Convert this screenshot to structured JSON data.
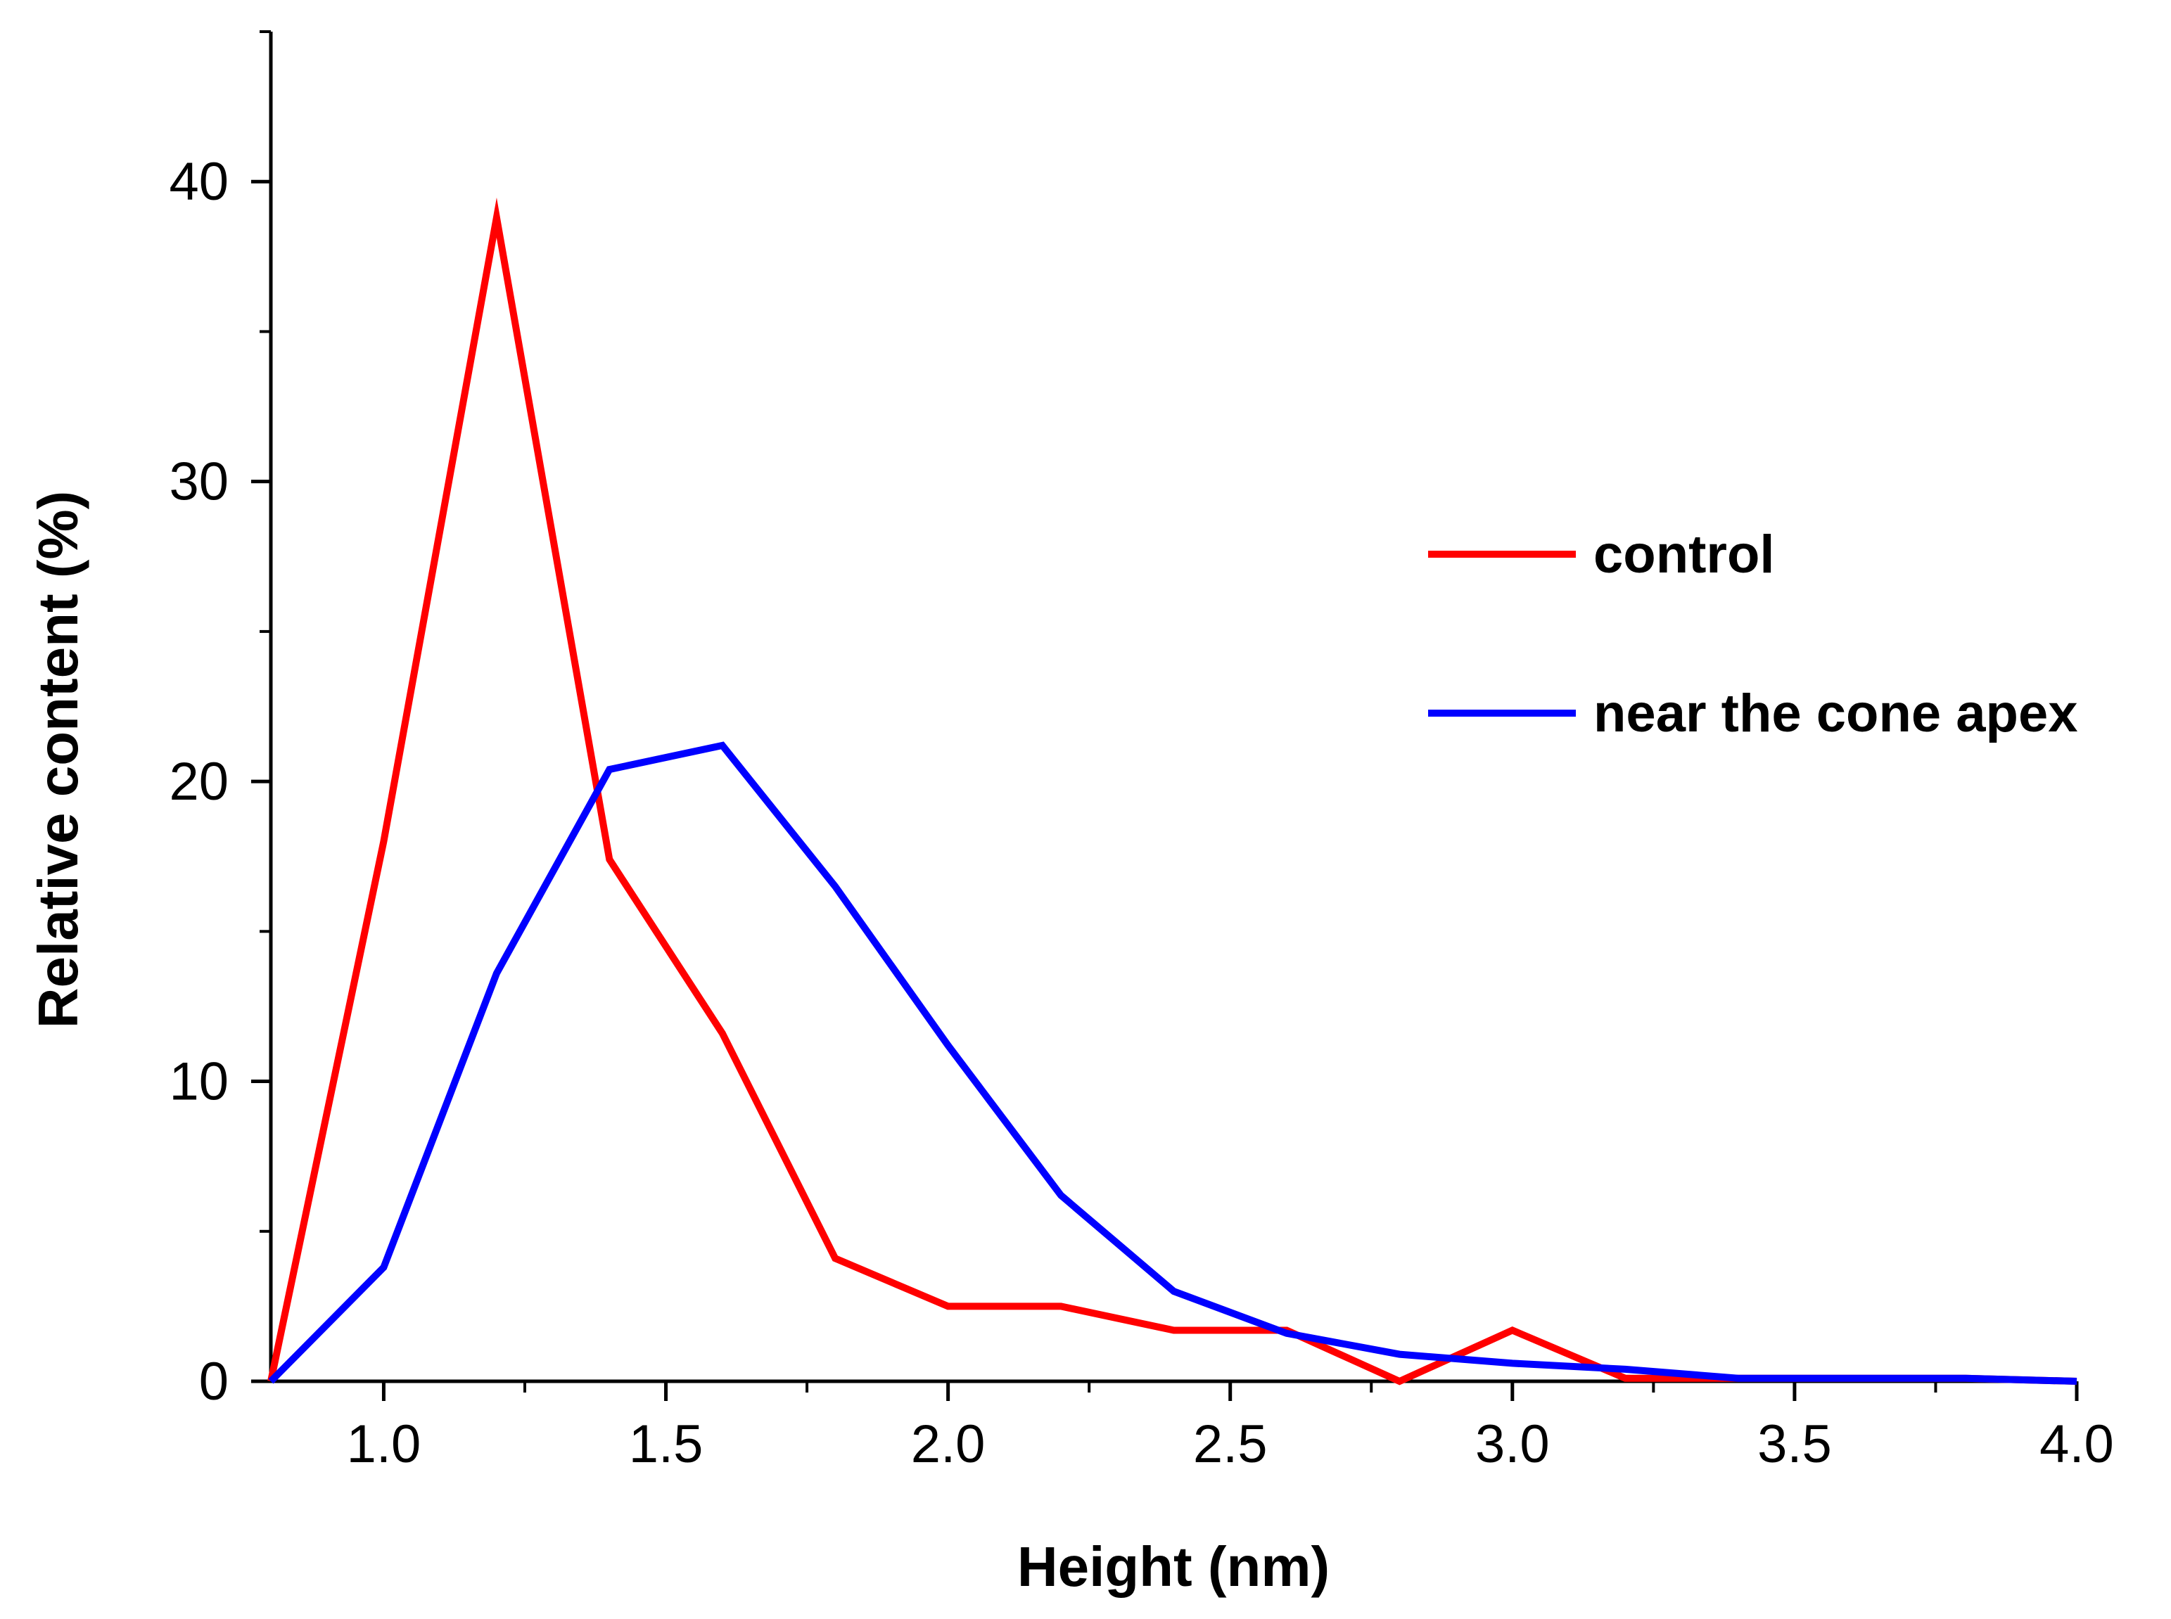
{
  "chart_data": {
    "type": "line",
    "title": "",
    "xlabel": "Height (nm)",
    "ylabel": "Relative content (%)",
    "xlim": [
      0.8,
      4.0
    ],
    "ylim": [
      0,
      45
    ],
    "x_ticks": [
      1.0,
      1.5,
      2.0,
      2.5,
      3.0,
      3.5,
      4.0
    ],
    "x_tick_labels": [
      "1.0",
      "1.5",
      "2.0",
      "2.5",
      "3.0",
      "3.5",
      "4.0"
    ],
    "y_ticks": [
      0,
      10,
      20,
      30,
      40
    ],
    "y_tick_labels": [
      "0",
      "10",
      "20",
      "30",
      "40"
    ],
    "grid": false,
    "legend_position": "right",
    "series": [
      {
        "name": "control",
        "color": "#ff0000",
        "x": [
          0.8,
          1.0,
          1.2,
          1.4,
          1.6,
          1.8,
          2.0,
          2.2,
          2.4,
          2.6,
          2.8,
          3.0,
          3.2,
          3.4,
          3.6,
          3.8,
          4.0
        ],
        "y": [
          0,
          18,
          38.8,
          17.4,
          11.6,
          4.1,
          2.5,
          2.5,
          1.7,
          1.7,
          0,
          1.7,
          0.1,
          0.1,
          0.1,
          0.1,
          0
        ]
      },
      {
        "name": "near the cone apex",
        "color": "#0000ff",
        "x": [
          0.8,
          1.0,
          1.2,
          1.4,
          1.6,
          1.8,
          2.0,
          2.2,
          2.4,
          2.6,
          2.8,
          3.0,
          3.2,
          3.4,
          3.6,
          3.8,
          4.0
        ],
        "y": [
          0,
          3.8,
          13.6,
          20.4,
          21.2,
          16.5,
          11.2,
          6.2,
          3.0,
          1.6,
          0.9,
          0.6,
          0.4,
          0.1,
          0.1,
          0.1,
          0
        ]
      }
    ]
  }
}
